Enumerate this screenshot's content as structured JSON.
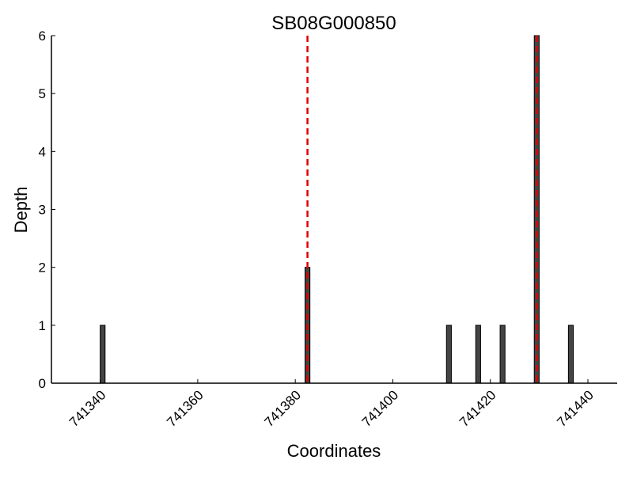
{
  "chart_data": {
    "type": "bar",
    "title": "SB08G000850",
    "xlabel": "Coordinates",
    "ylabel": "Depth",
    "xlim": [
      741330,
      741446
    ],
    "ylim": [
      0,
      6
    ],
    "xticks": [
      741340,
      741360,
      741380,
      741400,
      741420,
      741440
    ],
    "yticks": [
      0,
      1,
      2,
      3,
      4,
      5,
      6
    ],
    "grid": false,
    "bar_color": "#444444",
    "x": [
      741340,
      741382,
      741411,
      741417,
      741422,
      741429,
      741436
    ],
    "values": [
      1,
      2,
      1,
      1,
      1,
      6,
      1
    ],
    "markers": {
      "color": "#e00000",
      "style": "dashed",
      "x": [
        741382.5,
        741429.5
      ]
    }
  }
}
